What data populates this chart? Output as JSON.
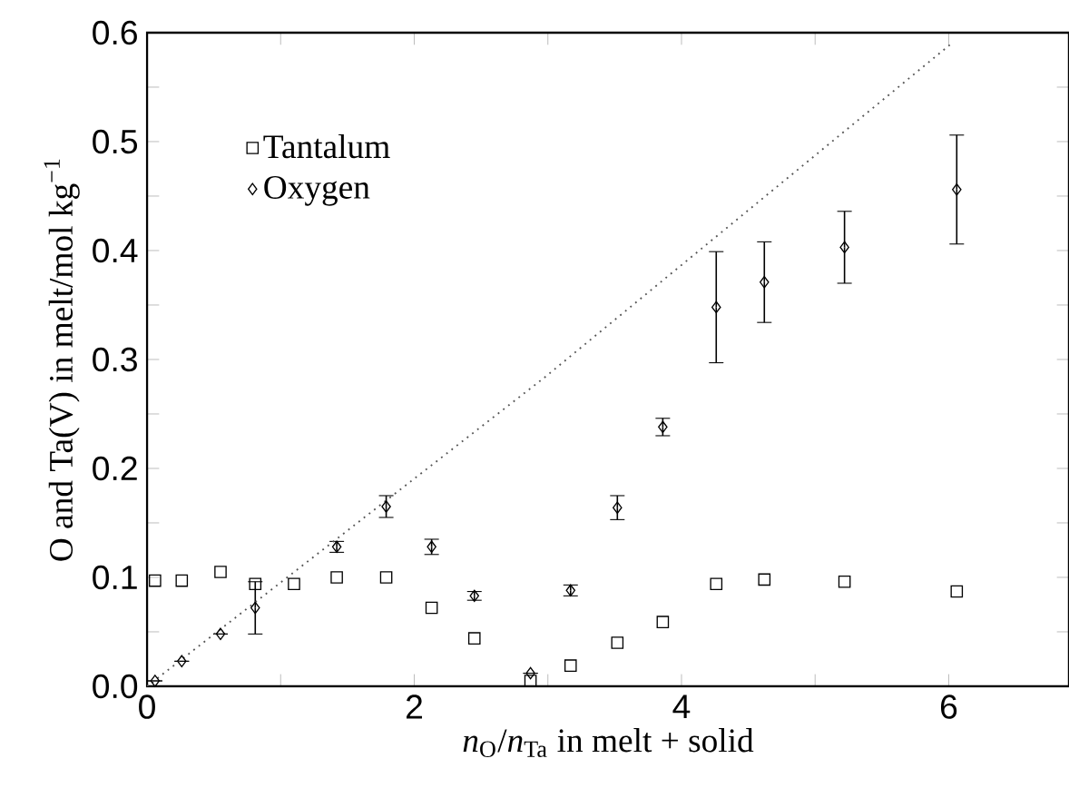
{
  "chart_data": {
    "type": "scatter",
    "xlabel": "*n*$_{O}$/*n*$_{Ta}$ in melt + solid",
    "ylabel": "O and Ta(V) in melt/mol kg$^{−1}$",
    "xlim": [
      0,
      6.9
    ],
    "ylim": [
      0,
      0.6
    ],
    "xticks": [
      {
        "value": 0,
        "label": "0"
      },
      {
        "value": 1,
        "label": null
      },
      {
        "value": 2,
        "label": "2"
      },
      {
        "value": 3,
        "label": null
      },
      {
        "value": 4,
        "label": "4"
      },
      {
        "value": 5,
        "label": null
      },
      {
        "value": 6,
        "label": "6"
      }
    ],
    "yticks": [
      {
        "value": 0,
        "label": "0.0"
      },
      {
        "value": 0.05,
        "label": null
      },
      {
        "value": 0.1,
        "label": "0.1"
      },
      {
        "value": 0.15,
        "label": null
      },
      {
        "value": 0.2,
        "label": "0.2"
      },
      {
        "value": 0.25,
        "label": null
      },
      {
        "value": 0.3,
        "label": "0.3"
      },
      {
        "value": 0.35,
        "label": null
      },
      {
        "value": 0.4,
        "label": "0.4"
      },
      {
        "value": 0.45,
        "label": null
      },
      {
        "value": 0.5,
        "label": "0.5"
      },
      {
        "value": 0.55,
        "label": null
      },
      {
        "value": 0.6,
        "label": "0.6"
      }
    ],
    "legend": "top left",
    "grid": false,
    "series": [
      {
        "name": "Tantalum",
        "color": "#000000",
        "marker": "square",
        "x": [
          0.06,
          0.26,
          0.55,
          0.81,
          1.1,
          1.42,
          1.79,
          2.13,
          2.45,
          2.87,
          3.17,
          3.52,
          3.86,
          4.26,
          4.62,
          5.22,
          6.06
        ],
        "values": [
          0.097,
          0.097,
          0.105,
          0.094,
          0.094,
          0.1,
          0.1,
          0.072,
          0.044,
          0.005,
          0.019,
          0.04,
          0.059,
          0.094,
          0.098,
          0.096,
          0.087
        ]
      },
      {
        "name": "Oxygen",
        "color": "#000000",
        "marker": "diamond",
        "x": [
          0.06,
          0.26,
          0.55,
          0.81,
          1.42,
          1.79,
          2.13,
          2.45,
          2.87,
          3.17,
          3.52,
          3.86,
          4.26,
          4.62,
          5.22,
          6.06
        ],
        "values": [
          0.005,
          0.023,
          0.048,
          0.072,
          0.128,
          0.165,
          0.128,
          0.083,
          0.012,
          0.088,
          0.164,
          0.238,
          0.348,
          0.371,
          0.403,
          0.456
        ],
        "errors": [
          null,
          null,
          null,
          0.024,
          0.005,
          0.01,
          0.007,
          0.004,
          null,
          0.005,
          0.011,
          0.008,
          0.051,
          0.037,
          0.033,
          0.05
        ]
      },
      {
        "type": "line",
        "color": "#555555",
        "line_style": "dotted",
        "marker": "none",
        "x": [
          0,
          2.97,
          6.02
        ],
        "values": [
          0,
          0.283,
          0.59
        ]
      }
    ]
  }
}
